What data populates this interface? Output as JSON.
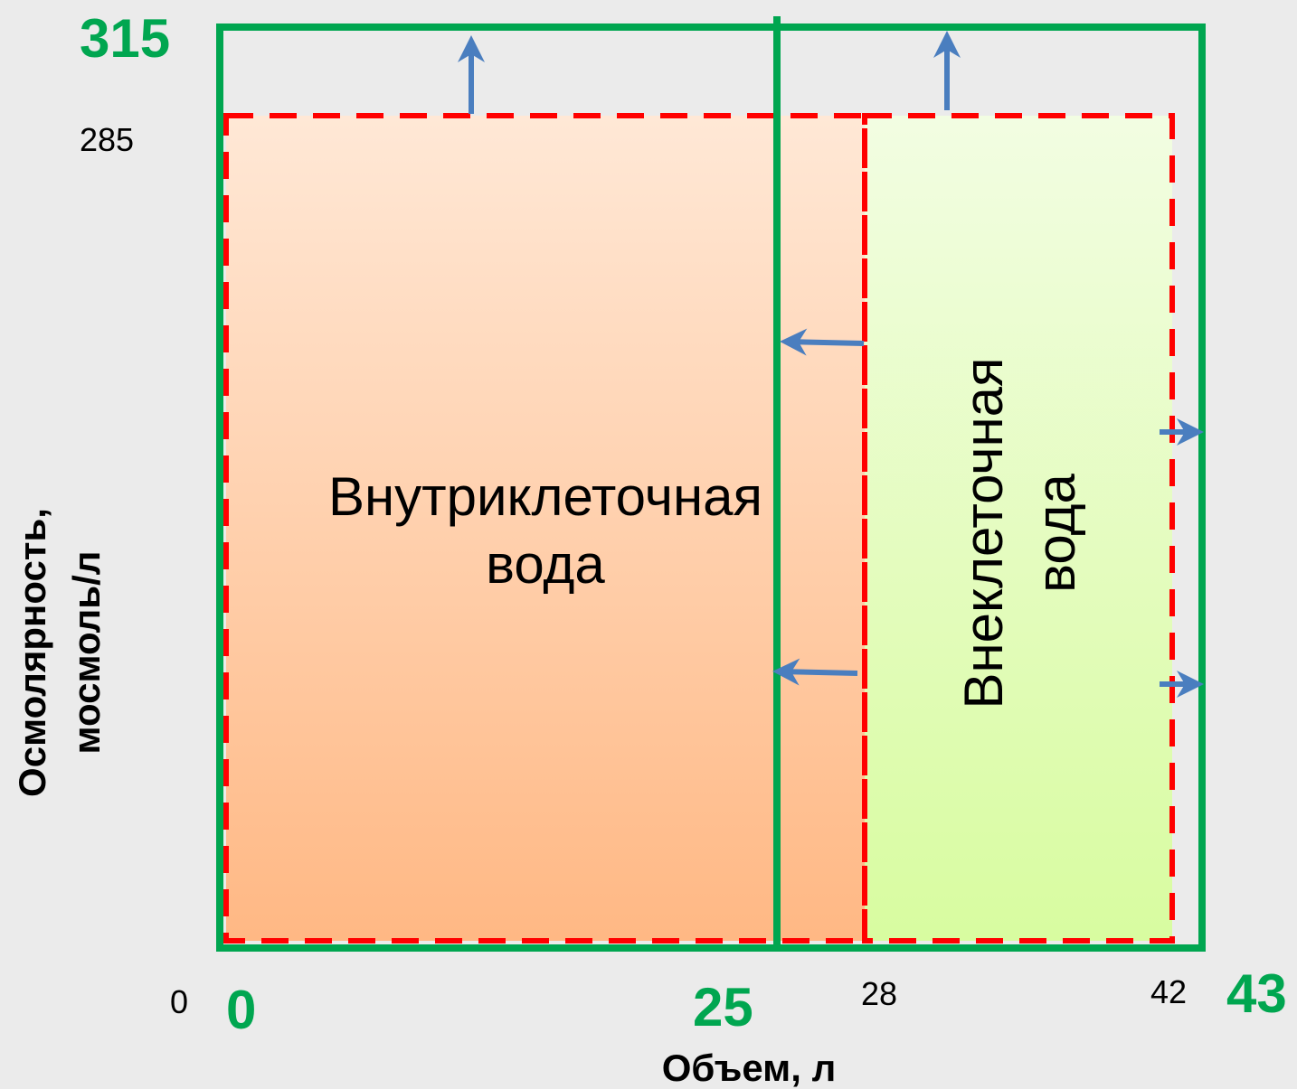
{
  "axes": {
    "x_label": "Объем, л",
    "y_label_line1": "Осмолярность,",
    "y_label_line2": "мосмоль/л"
  },
  "ticks": {
    "y_origin": "0",
    "y_old": "285",
    "y_new": "315",
    "x_old_zero": "0",
    "x_new_zero": "0",
    "x_new_intra": "25",
    "x_old_intra": "28",
    "x_old_total": "42",
    "x_new_total": "43"
  },
  "regions": {
    "intracellular_line1": "Внутриклеточная",
    "intracellular_line2": "вода",
    "extracellular_line1": "Внеклеточная",
    "extracellular_line2": "вода"
  },
  "colors": {
    "green": "#00a650",
    "red_dashed": "#ff0000",
    "arrow_blue": "#4a7ebf",
    "intra_fill_top": "#ffe8d6",
    "intra_fill_bottom": "#ffb884",
    "extra_fill_top": "#f2fde2",
    "extra_fill_bottom": "#d8fca0"
  }
}
